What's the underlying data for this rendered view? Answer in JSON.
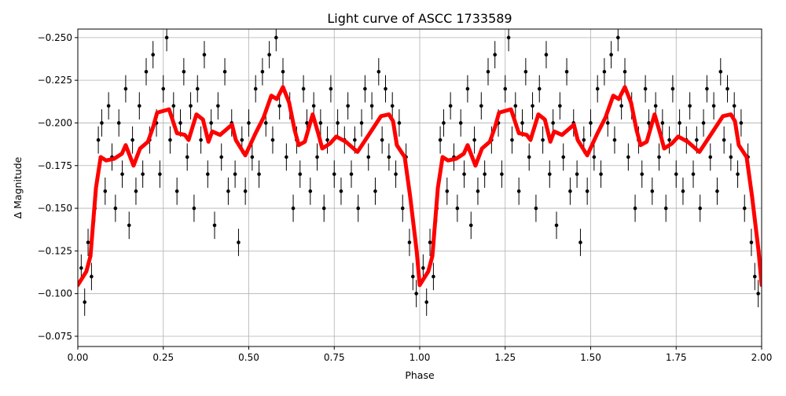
{
  "chart_data": {
    "type": "scatter",
    "title": "Light curve of ASCC 1733589",
    "xlabel": "Phase",
    "ylabel": "Δ Magnitude",
    "xlim": [
      0.0,
      2.0
    ],
    "ylim": [
      -0.069,
      -0.255
    ],
    "y_inverted": true,
    "grid": true,
    "xticks": [
      0.0,
      0.25,
      0.5,
      0.75,
      1.0,
      1.25,
      1.5,
      1.75,
      2.0
    ],
    "xtick_labels": [
      "0.00",
      "0.25",
      "0.50",
      "0.75",
      "1.00",
      "1.25",
      "1.50",
      "1.75",
      "2.00"
    ],
    "yticks": [
      -0.25,
      -0.225,
      -0.2,
      -0.175,
      -0.15,
      -0.125,
      -0.1,
      -0.075
    ],
    "ytick_labels": [
      "−0.250",
      "−0.225",
      "−0.200",
      "−0.175",
      "−0.150",
      "−0.125",
      "−0.100",
      "−0.075"
    ],
    "colors": {
      "observations": "#000000",
      "model": "#ff0000",
      "grid": "#b0b0b0"
    },
    "phase_repeats": 2,
    "observations": {
      "error": 0.008,
      "points": [
        [
          0.01,
          -0.115
        ],
        [
          0.02,
          -0.095
        ],
        [
          0.03,
          -0.13
        ],
        [
          0.04,
          -0.11
        ],
        [
          0.05,
          -0.15
        ],
        [
          0.06,
          -0.19
        ],
        [
          0.07,
          -0.2
        ],
        [
          0.08,
          -0.16
        ],
        [
          0.09,
          -0.21
        ],
        [
          0.1,
          -0.18
        ],
        [
          0.11,
          -0.15
        ],
        [
          0.12,
          -0.2
        ],
        [
          0.13,
          -0.17
        ],
        [
          0.14,
          -0.22
        ],
        [
          0.15,
          -0.14
        ],
        [
          0.16,
          -0.19
        ],
        [
          0.17,
          -0.16
        ],
        [
          0.18,
          -0.21
        ],
        [
          0.19,
          -0.17
        ],
        [
          0.2,
          -0.23
        ],
        [
          0.21,
          -0.19
        ],
        [
          0.22,
          -0.24
        ],
        [
          0.23,
          -0.2
        ],
        [
          0.24,
          -0.17
        ],
        [
          0.25,
          -0.22
        ],
        [
          0.26,
          -0.25
        ],
        [
          0.27,
          -0.19
        ],
        [
          0.28,
          -0.21
        ],
        [
          0.29,
          -0.16
        ],
        [
          0.3,
          -0.2
        ],
        [
          0.31,
          -0.23
        ],
        [
          0.32,
          -0.18
        ],
        [
          0.33,
          -0.21
        ],
        [
          0.34,
          -0.15
        ],
        [
          0.35,
          -0.22
        ],
        [
          0.36,
          -0.19
        ],
        [
          0.37,
          -0.24
        ],
        [
          0.38,
          -0.17
        ],
        [
          0.39,
          -0.2
        ],
        [
          0.4,
          -0.14
        ],
        [
          0.41,
          -0.21
        ],
        [
          0.42,
          -0.18
        ],
        [
          0.43,
          -0.23
        ],
        [
          0.44,
          -0.16
        ],
        [
          0.45,
          -0.2
        ],
        [
          0.46,
          -0.17
        ],
        [
          0.47,
          -0.13
        ],
        [
          0.48,
          -0.19
        ],
        [
          0.49,
          -0.16
        ],
        [
          0.5,
          -0.2
        ],
        [
          0.51,
          -0.18
        ],
        [
          0.52,
          -0.22
        ],
        [
          0.53,
          -0.17
        ],
        [
          0.54,
          -0.23
        ],
        [
          0.55,
          -0.2
        ],
        [
          0.56,
          -0.24
        ],
        [
          0.57,
          -0.19
        ],
        [
          0.58,
          -0.25
        ],
        [
          0.59,
          -0.21
        ],
        [
          0.6,
          -0.23
        ],
        [
          0.61,
          -0.18
        ],
        [
          0.62,
          -0.21
        ],
        [
          0.63,
          -0.15
        ],
        [
          0.64,
          -0.19
        ],
        [
          0.65,
          -0.17
        ],
        [
          0.66,
          -0.22
        ],
        [
          0.67,
          -0.2
        ],
        [
          0.68,
          -0.16
        ],
        [
          0.69,
          -0.21
        ],
        [
          0.7,
          -0.18
        ],
        [
          0.71,
          -0.2
        ],
        [
          0.72,
          -0.15
        ],
        [
          0.73,
          -0.19
        ],
        [
          0.74,
          -0.22
        ],
        [
          0.75,
          -0.17
        ],
        [
          0.76,
          -0.2
        ],
        [
          0.77,
          -0.16
        ],
        [
          0.78,
          -0.19
        ],
        [
          0.79,
          -0.21
        ],
        [
          0.8,
          -0.17
        ],
        [
          0.81,
          -0.19
        ],
        [
          0.82,
          -0.15
        ],
        [
          0.83,
          -0.2
        ],
        [
          0.84,
          -0.22
        ],
        [
          0.85,
          -0.18
        ],
        [
          0.86,
          -0.21
        ],
        [
          0.87,
          -0.16
        ],
        [
          0.88,
          -0.23
        ],
        [
          0.89,
          -0.19
        ],
        [
          0.9,
          -0.22
        ],
        [
          0.91,
          -0.18
        ],
        [
          0.92,
          -0.21
        ],
        [
          0.93,
          -0.17
        ],
        [
          0.94,
          -0.2
        ],
        [
          0.95,
          -0.15
        ],
        [
          0.96,
          -0.18
        ],
        [
          0.97,
          -0.13
        ],
        [
          0.98,
          -0.11
        ],
        [
          0.99,
          -0.1
        ]
      ]
    },
    "model": {
      "phase": [
        0.0,
        0.025,
        0.037,
        0.053,
        0.067,
        0.083,
        0.106,
        0.129,
        0.14,
        0.163,
        0.182,
        0.205,
        0.221,
        0.232,
        0.267,
        0.29,
        0.313,
        0.324,
        0.347,
        0.366,
        0.382,
        0.393,
        0.416,
        0.451,
        0.462,
        0.49,
        0.52,
        0.543,
        0.566,
        0.582,
        0.6,
        0.618,
        0.634,
        0.646,
        0.664,
        0.687,
        0.703,
        0.715,
        0.738,
        0.756,
        0.784,
        0.818,
        0.841,
        0.864,
        0.887,
        0.91,
        0.922,
        0.933,
        0.956,
        0.972,
        0.991,
        1.0
      ],
      "magnitude": [
        -0.105,
        -0.113,
        -0.122,
        -0.162,
        -0.18,
        -0.178,
        -0.179,
        -0.182,
        -0.187,
        -0.175,
        -0.185,
        -0.189,
        -0.198,
        -0.206,
        -0.208,
        -0.194,
        -0.193,
        -0.19,
        -0.205,
        -0.202,
        -0.189,
        -0.195,
        -0.193,
        -0.199,
        -0.19,
        -0.181,
        -0.194,
        -0.203,
        -0.216,
        -0.214,
        -0.221,
        -0.212,
        -0.196,
        -0.187,
        -0.189,
        -0.205,
        -0.194,
        -0.185,
        -0.188,
        -0.192,
        -0.189,
        -0.183,
        -0.19,
        -0.197,
        -0.204,
        -0.205,
        -0.201,
        -0.187,
        -0.18,
        -0.157,
        -0.125,
        -0.105
      ]
    }
  }
}
